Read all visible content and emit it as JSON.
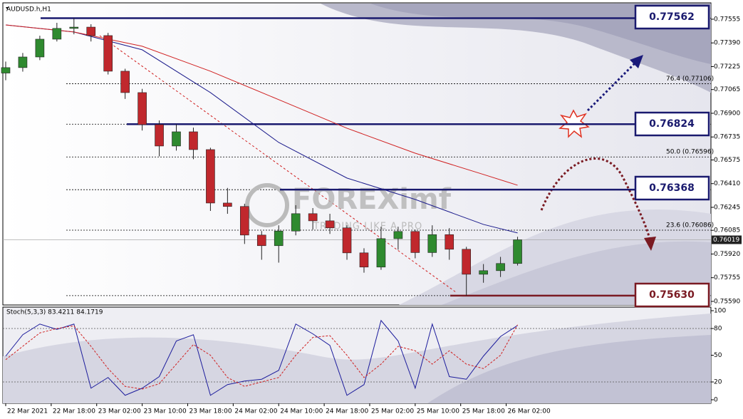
{
  "chart_data": [
    {
      "type": "candlestick",
      "title": "AUDUSD.h,H1",
      "x": [
        10,
        13,
        16,
        19,
        22,
        25,
        28,
        31,
        34,
        37,
        40,
        43,
        46,
        49,
        52,
        55,
        58,
        61,
        64,
        67,
        70,
        73,
        76,
        79,
        82,
        85,
        88,
        91,
        94,
        97,
        100
      ],
      "open": [
        0.7718,
        0.77218,
        0.77292,
        0.77416,
        0.77491,
        0.775,
        0.77441,
        0.77193,
        0.77044,
        0.76821,
        0.76672,
        0.76771,
        0.76647,
        0.76275,
        0.76251,
        0.76052,
        0.75978,
        0.7608,
        0.76201,
        0.76151,
        0.76102,
        0.75928,
        0.75829,
        0.76027,
        0.76077,
        0.7593,
        0.76055,
        0.75953,
        0.75779,
        0.75804,
        0.75854
      ],
      "high": [
        0.7726,
        0.7732,
        0.7744,
        0.7753,
        0.77562,
        0.7752,
        0.7746,
        0.7721,
        0.7707,
        0.7685,
        0.76824,
        0.768,
        0.7666,
        0.7638,
        0.7627,
        0.7608,
        0.7612,
        0.7626,
        0.7624,
        0.762,
        0.7612,
        0.7596,
        0.7611,
        0.7611,
        0.7609,
        0.7612,
        0.761,
        0.7597,
        0.7585,
        0.759,
        0.7604
      ],
      "low": [
        0.7713,
        0.7719,
        0.7727,
        0.774,
        0.7745,
        0.774,
        0.7717,
        0.77,
        0.7678,
        0.766,
        0.7664,
        0.7658,
        0.7622,
        0.762,
        0.7599,
        0.7588,
        0.7586,
        0.7605,
        0.7609,
        0.7606,
        0.7588,
        0.7579,
        0.7581,
        0.7595,
        0.7589,
        0.759,
        0.7588,
        0.7563,
        0.7572,
        0.7576,
        0.7584
      ],
      "close": [
        0.77218,
        0.77292,
        0.77416,
        0.77491,
        0.775,
        0.77441,
        0.77193,
        0.77044,
        0.76821,
        0.76672,
        0.76771,
        0.76647,
        0.76275,
        0.76251,
        0.76052,
        0.75978,
        0.7608,
        0.76201,
        0.76151,
        0.76102,
        0.75928,
        0.75829,
        0.76027,
        0.76077,
        0.7593,
        0.76055,
        0.75953,
        0.75779,
        0.75804,
        0.75854,
        0.76019
      ],
      "up_color": "#2f8a2f",
      "down_color": "#c0282d",
      "overlays": [
        {
          "color": "#1c1c8c",
          "x": [
            10,
            22,
            34,
            46,
            58,
            70,
            82,
            94,
            100
          ],
          "values": [
            0.77515,
            0.77466,
            0.77342,
            0.77044,
            0.76697,
            0.76449,
            0.763,
            0.76126,
            0.76067
          ]
        },
        {
          "color": "#d02020",
          "x": [
            10,
            22,
            34,
            46,
            58,
            70,
            82,
            94,
            100
          ],
          "values": [
            0.77515,
            0.77466,
            0.77367,
            0.77193,
            0.76995,
            0.76796,
            0.76622,
            0.76474,
            0.76399
          ]
        }
      ],
      "levels": [
        {
          "value": 0.77562,
          "label": "0.77562",
          "color": "#1a1a6e"
        },
        {
          "value": 0.76824,
          "label": "0.76824",
          "color": "#1a1a6e"
        },
        {
          "value": 0.76368,
          "label": "0.76368",
          "color": "#1a1a6e"
        },
        {
          "value": 0.7563,
          "label": "0.75630",
          "color": "#7a1a22"
        }
      ],
      "fib_levels": [
        {
          "value": 0.77106,
          "label": "76.4 (0.77106)"
        },
        {
          "value": 0.76596,
          "label": "50.0 (0.76596)"
        },
        {
          "value": 0.76086,
          "label": "23.6 (0.76086)"
        }
      ],
      "current_price": {
        "value": 0.76019,
        "label": "0.76019"
      },
      "watermark": {
        "brand": "FOREXimf",
        "tagline": "TRADING LIKE A PRO"
      },
      "xlim": [
        9.5,
        134
      ],
      "xticks": [
        {
          "value": 10,
          "label": "22 Mar 2021"
        },
        {
          "value": 18,
          "label": "22 Mar 18:00"
        },
        {
          "value": 26,
          "label": "23 Mar 02:00"
        },
        {
          "value": 34,
          "label": "23 Mar 10:00"
        },
        {
          "value": 42,
          "label": "23 Mar 18:00"
        },
        {
          "value": 50,
          "label": "24 Mar 02:00"
        },
        {
          "value": 58,
          "label": "24 Mar 10:00"
        },
        {
          "value": 66,
          "label": "24 Mar 18:00"
        },
        {
          "value": 74,
          "label": "25 Mar 02:00"
        },
        {
          "value": 82,
          "label": "25 Mar 10:00"
        },
        {
          "value": 90,
          "label": "25 Mar 18:00"
        },
        {
          "value": 98,
          "label": "26 Mar 02:00"
        }
      ],
      "ylim": [
        0.75565,
        0.77664
      ],
      "yticks": [
        0.77555,
        {
          "value": 0.7739,
          "label": "0.77390"
        },
        0.77225,
        0.77065,
        {
          "value": 0.769,
          "label": "0.76900"
        },
        0.76735,
        0.76575,
        {
          "value": 0.7641,
          "label": "0.76410"
        },
        0.76245,
        0.76085,
        {
          "value": 0.7592,
          "label": "0.75920"
        },
        0.75755,
        {
          "value": 0.7559,
          "label": "0.75590"
        }
      ]
    },
    {
      "type": "line",
      "title": "Stoch(5,3,3) 83.4211 84.1719",
      "x": [
        10,
        13,
        16,
        19,
        22,
        25,
        28,
        31,
        34,
        37,
        40,
        43,
        46,
        49,
        52,
        55,
        58,
        61,
        64,
        67,
        70,
        73,
        76,
        79,
        82,
        85,
        88,
        91,
        94,
        97,
        100
      ],
      "series": [
        {
          "color": "#1c1c9c",
          "dash": false,
          "values": [
            49,
            73,
            85,
            79,
            85,
            13,
            25,
            5,
            13,
            26,
            66,
            73,
            5,
            17,
            21,
            23,
            33,
            85,
            74,
            61,
            5,
            17,
            89,
            66,
            13,
            85,
            26,
            23,
            49,
            71,
            83.4211
          ]
        },
        {
          "color": "#d02020",
          "dash": true,
          "values": [
            45,
            60,
            75,
            80,
            83,
            60,
            35,
            15,
            12,
            18,
            40,
            62,
            50,
            25,
            15,
            20,
            25,
            50,
            70,
            72,
            50,
            25,
            40,
            60,
            55,
            40,
            55,
            40,
            35,
            50,
            84.1719
          ]
        }
      ],
      "ylim": [
        0,
        100
      ],
      "yticks": [
        100,
        80,
        50,
        20,
        0
      ],
      "grid_levels": [
        80,
        20
      ]
    }
  ]
}
